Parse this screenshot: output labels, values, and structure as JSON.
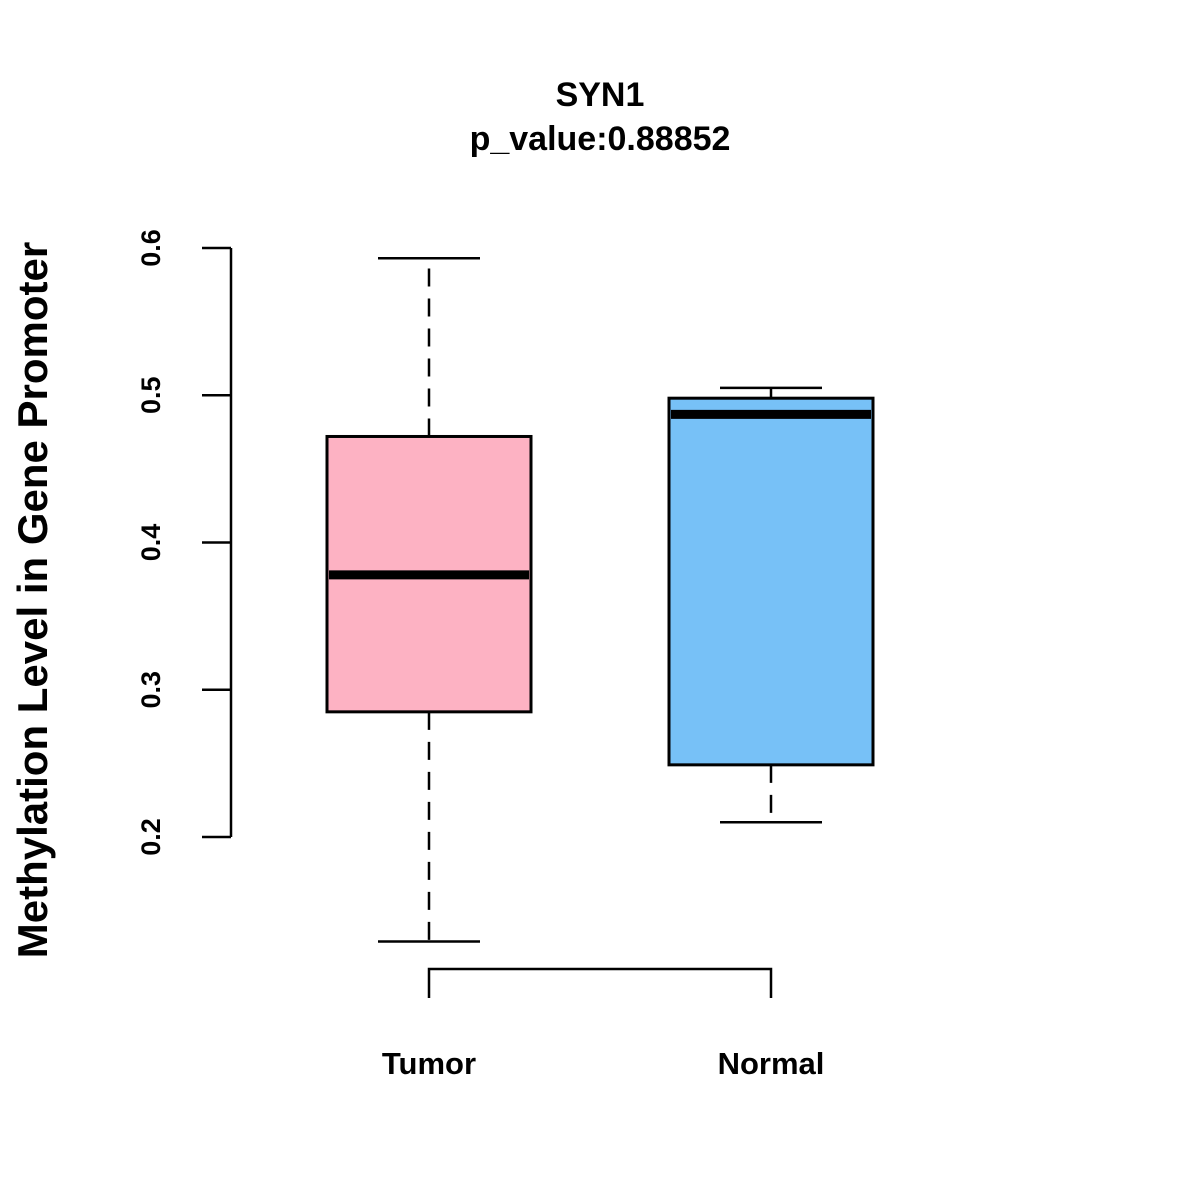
{
  "chart_data": {
    "type": "boxplot",
    "title": "SYN1",
    "subtitle": "p_value:0.88852",
    "xlabel": "",
    "ylabel": "Methylation Level in Gene Promoter",
    "ylim": [
      0.2,
      0.6
    ],
    "yticks": [
      "0.2",
      "0.3",
      "0.4",
      "0.5",
      "0.6"
    ],
    "grid": false,
    "categories": [
      "Tumor",
      "Normal"
    ],
    "series": [
      {
        "name": "Tumor",
        "color": "#FDB2C3",
        "min": 0.129,
        "q1": 0.285,
        "median": 0.378,
        "q3": 0.472,
        "max": 0.593
      },
      {
        "name": "Normal",
        "color": "#77C1F7",
        "min": 0.21,
        "q1": 0.249,
        "median": 0.487,
        "q3": 0.498,
        "max": 0.505
      }
    ],
    "comparison_bracket": [
      "Tumor",
      "Normal"
    ]
  }
}
